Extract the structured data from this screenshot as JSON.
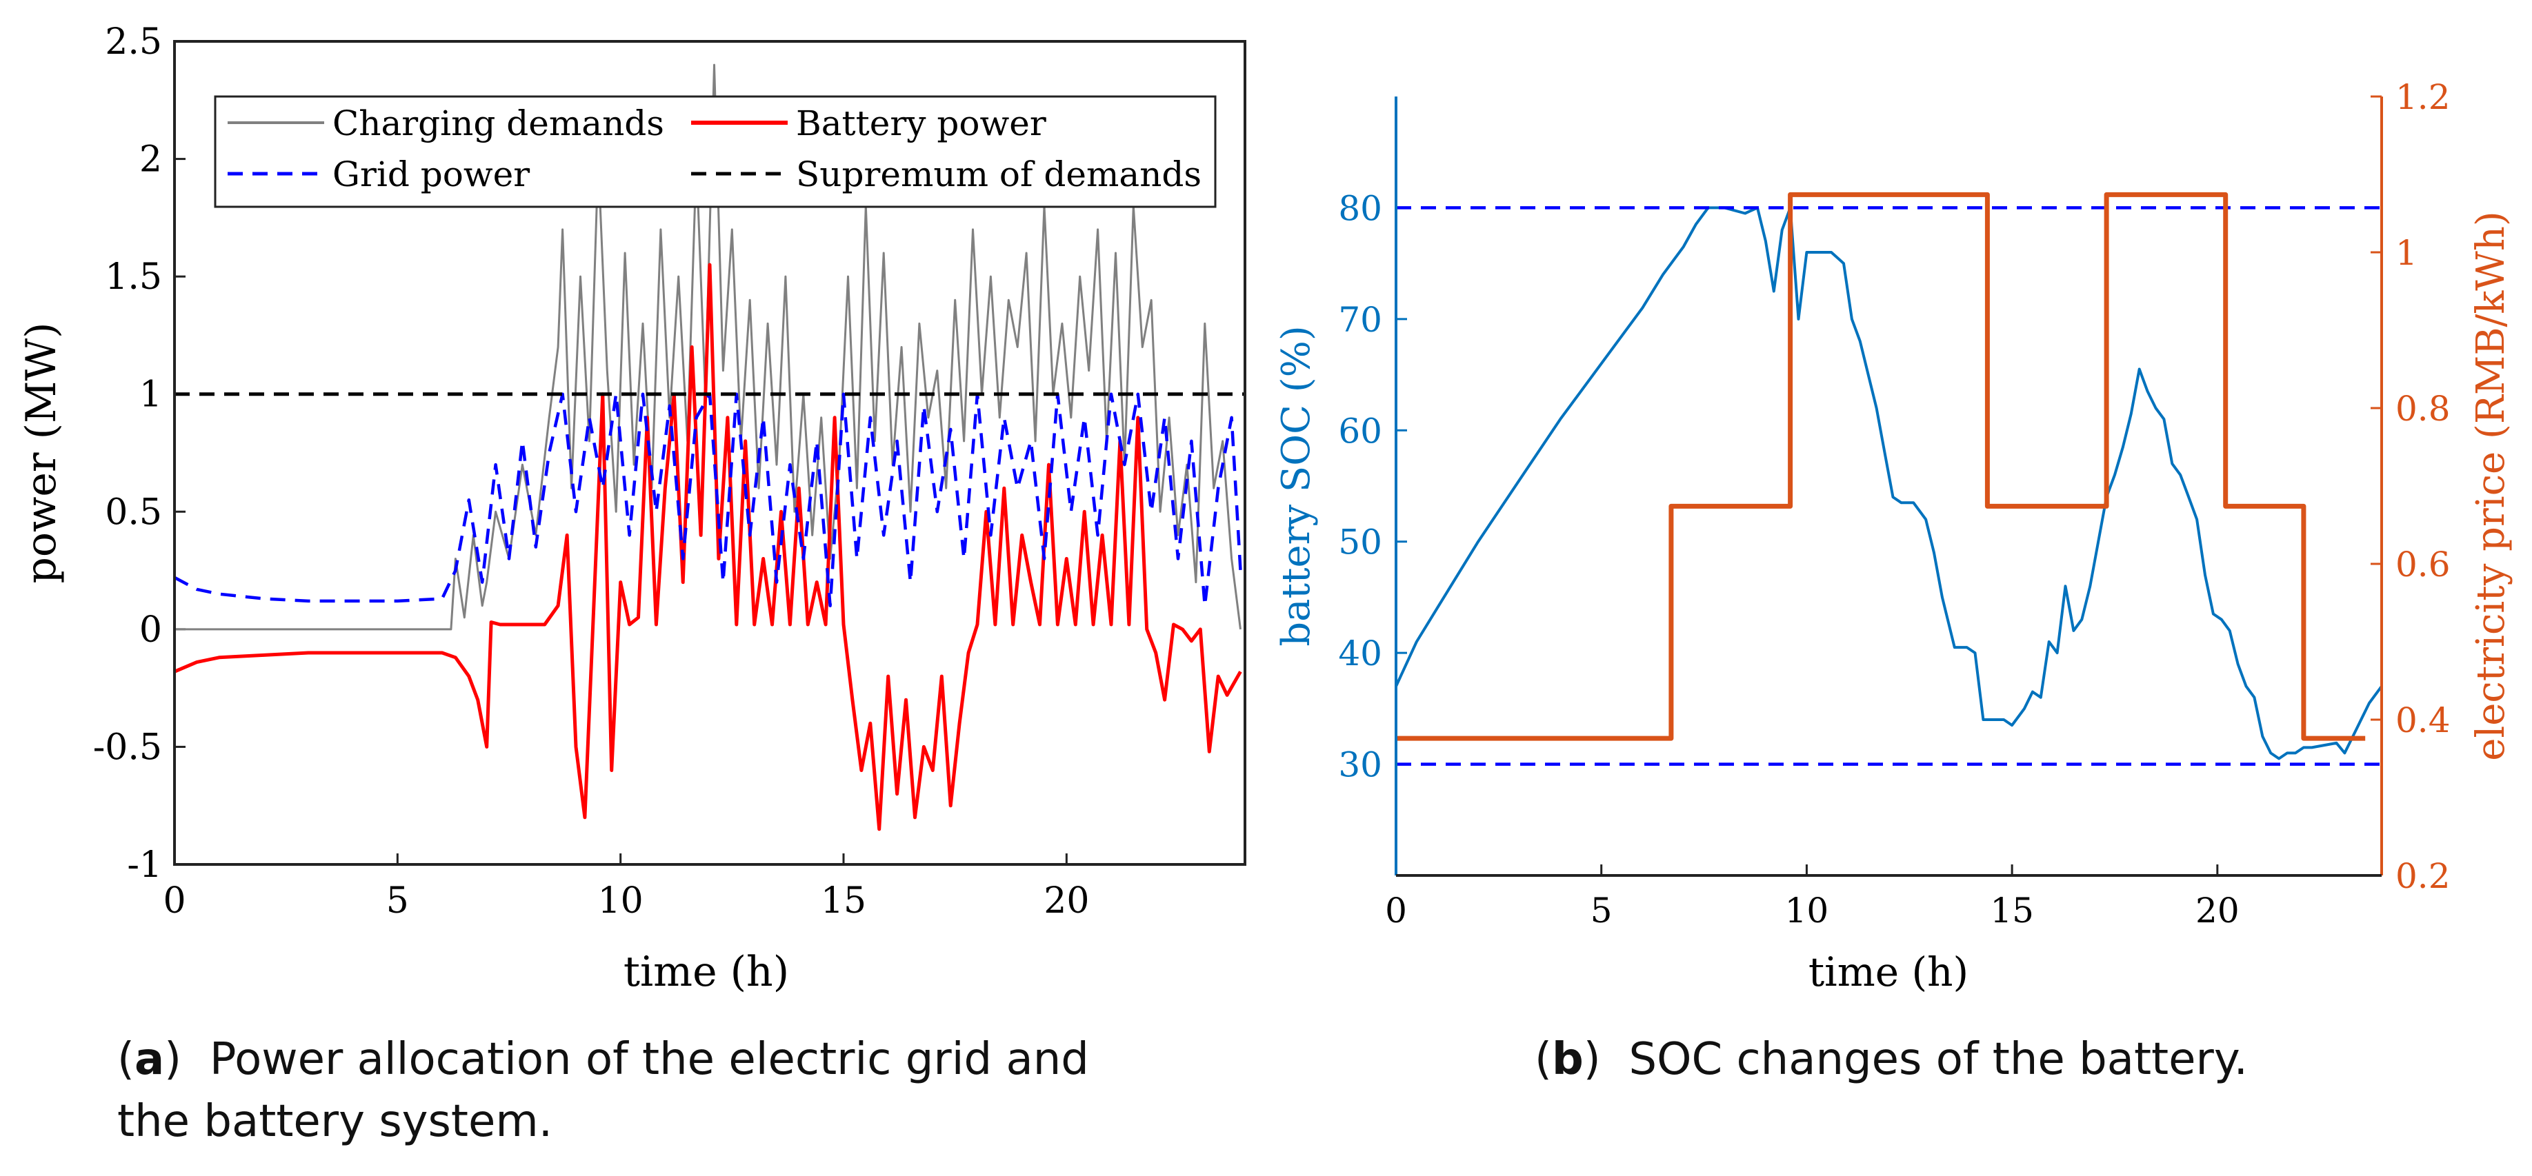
{
  "captions": {
    "a": {
      "letter": "a",
      "text": "Power allocation of the electric grid and",
      "text2": "the battery system."
    },
    "b": {
      "letter": "b",
      "text": "SOC changes of the battery."
    }
  },
  "chart_data": [
    {
      "type": "line",
      "id": "a",
      "title": "",
      "xlabel": "time (h)",
      "ylabel": "power (MW)",
      "xlim": [
        0,
        24
      ],
      "ylim": [
        -1,
        2.5
      ],
      "xticks": [
        0,
        5,
        10,
        15,
        20
      ],
      "yticks": [
        -1,
        -0.5,
        0,
        0.5,
        1,
        1.5,
        2,
        2.5
      ],
      "ytick_labels": [
        "-1",
        "-0.5",
        "0",
        "0.5",
        "1",
        "1.5",
        "2",
        "2.5"
      ],
      "legend": {
        "placement": "top-center",
        "entries": [
          "Charging demands",
          "Battery power",
          "Grid power",
          "Supremum of demands"
        ]
      },
      "series": [
        {
          "name": "Charging demands",
          "color": "#808080",
          "style": "solid",
          "x": [
            0,
            6.2,
            6.3,
            6.5,
            6.7,
            6.9,
            7.0,
            7.2,
            7.5,
            7.8,
            8.1,
            8.4,
            8.6,
            8.7,
            8.9,
            9.1,
            9.3,
            9.5,
            9.7,
            9.9,
            10.1,
            10.3,
            10.5,
            10.7,
            10.9,
            11.1,
            11.3,
            11.5,
            11.7,
            11.9,
            12.1,
            12.3,
            12.5,
            12.7,
            12.9,
            13.1,
            13.3,
            13.5,
            13.7,
            13.9,
            14.1,
            14.3,
            14.5,
            14.7,
            14.9,
            15.1,
            15.3,
            15.5,
            15.7,
            15.9,
            16.1,
            16.3,
            16.5,
            16.7,
            16.9,
            17.1,
            17.3,
            17.5,
            17.7,
            17.9,
            18.1,
            18.3,
            18.5,
            18.7,
            18.9,
            19.1,
            19.3,
            19.5,
            19.7,
            19.9,
            20.1,
            20.3,
            20.5,
            20.7,
            20.9,
            21.1,
            21.3,
            21.5,
            21.7,
            21.9,
            22.1,
            22.3,
            22.5,
            22.7,
            22.9,
            23.1,
            23.3,
            23.5,
            23.7,
            23.9
          ],
          "y": [
            0,
            0,
            0.3,
            0.05,
            0.4,
            0.1,
            0.2,
            0.5,
            0.3,
            0.7,
            0.4,
            0.9,
            1.2,
            1.7,
            0.6,
            1.5,
            0.8,
            2.0,
            1.1,
            0.5,
            1.6,
            0.7,
            1.3,
            0.6,
            1.7,
            0.9,
            1.5,
            0.8,
            2.0,
            1.0,
            2.4,
            1.1,
            1.7,
            0.8,
            1.4,
            0.6,
            1.3,
            0.7,
            1.5,
            0.5,
            1.0,
            0.4,
            0.9,
            0.3,
            0.7,
            1.5,
            0.6,
            1.8,
            0.8,
            1.6,
            0.7,
            1.2,
            0.5,
            1.3,
            0.9,
            1.1,
            0.6,
            1.4,
            0.8,
            1.7,
            1.0,
            1.5,
            0.9,
            1.4,
            1.2,
            1.6,
            0.8,
            1.8,
            1.0,
            1.3,
            0.9,
            1.5,
            1.1,
            1.7,
            0.8,
            1.6,
            0.7,
            1.8,
            1.2,
            1.4,
            0.5,
            0.9,
            0.4,
            0.7,
            0.2,
            1.3,
            0.6,
            0.8,
            0.3,
            0.0
          ]
        },
        {
          "name": "Battery power",
          "color": "#ff0000",
          "style": "solid",
          "x": [
            0,
            0.5,
            1,
            2,
            3,
            4,
            5,
            6,
            6.3,
            6.6,
            6.8,
            7.0,
            7.1,
            7.3,
            7.6,
            8.0,
            8.3,
            8.6,
            8.8,
            9.0,
            9.2,
            9.4,
            9.6,
            9.8,
            10.0,
            10.2,
            10.4,
            10.6,
            10.8,
            11.0,
            11.2,
            11.4,
            11.6,
            11.8,
            12.0,
            12.2,
            12.4,
            12.6,
            12.8,
            13.0,
            13.2,
            13.4,
            13.6,
            13.8,
            14.0,
            14.2,
            14.4,
            14.6,
            14.8,
            15.0,
            15.2,
            15.4,
            15.6,
            15.8,
            16.0,
            16.2,
            16.4,
            16.6,
            16.8,
            17.0,
            17.2,
            17.4,
            17.6,
            17.8,
            18.0,
            18.2,
            18.4,
            18.6,
            18.8,
            19.0,
            19.2,
            19.4,
            19.6,
            19.8,
            20.0,
            20.2,
            20.4,
            20.6,
            20.8,
            21.0,
            21.2,
            21.4,
            21.6,
            21.8,
            22.0,
            22.2,
            22.4,
            22.6,
            22.8,
            23.0,
            23.2,
            23.4,
            23.6,
            23.9
          ],
          "y": [
            -0.18,
            -0.14,
            -0.12,
            -0.11,
            -0.1,
            -0.1,
            -0.1,
            -0.1,
            -0.12,
            -0.2,
            -0.3,
            -0.5,
            0.03,
            0.02,
            0.02,
            0.02,
            0.02,
            0.1,
            0.4,
            -0.5,
            -0.8,
            0.1,
            1.0,
            -0.6,
            0.2,
            0.02,
            0.05,
            0.9,
            0.02,
            0.6,
            1.0,
            0.2,
            1.2,
            0.4,
            1.55,
            0.3,
            0.9,
            0.02,
            0.8,
            0.02,
            0.3,
            0.02,
            0.5,
            0.02,
            0.6,
            0.02,
            0.2,
            0.02,
            0.9,
            0.02,
            -0.3,
            -0.6,
            -0.4,
            -0.85,
            -0.2,
            -0.7,
            -0.3,
            -0.8,
            -0.5,
            -0.6,
            -0.2,
            -0.75,
            -0.4,
            -0.1,
            0.02,
            0.5,
            0.02,
            0.6,
            0.02,
            0.4,
            0.2,
            0.02,
            0.7,
            0.02,
            0.3,
            0.02,
            0.5,
            0.02,
            0.4,
            0.02,
            0.8,
            0.02,
            0.9,
            0.0,
            -0.1,
            -0.3,
            0.02,
            0.0,
            -0.05,
            0.0,
            -0.52,
            -0.2,
            -0.28,
            -0.18
          ]
        },
        {
          "name": "Grid power",
          "color": "#0000ff",
          "style": "dashed",
          "x": [
            0,
            0.5,
            1,
            2,
            3,
            4,
            5,
            6,
            6.3,
            6.6,
            6.9,
            7.2,
            7.5,
            7.8,
            8.1,
            8.4,
            8.7,
            9.0,
            9.3,
            9.6,
            9.9,
            10.2,
            10.5,
            10.8,
            11.1,
            11.4,
            11.7,
            12.0,
            12.3,
            12.6,
            12.9,
            13.2,
            13.5,
            13.8,
            14.1,
            14.4,
            14.7,
            15.0,
            15.3,
            15.6,
            15.9,
            16.2,
            16.5,
            16.8,
            17.1,
            17.4,
            17.7,
            18.0,
            18.3,
            18.6,
            18.9,
            19.2,
            19.5,
            19.8,
            20.1,
            20.4,
            20.7,
            21.0,
            21.3,
            21.6,
            21.9,
            22.2,
            22.5,
            22.8,
            23.1,
            23.4,
            23.7,
            23.9
          ],
          "y": [
            0.22,
            0.17,
            0.15,
            0.13,
            0.12,
            0.12,
            0.12,
            0.13,
            0.25,
            0.55,
            0.2,
            0.7,
            0.3,
            0.8,
            0.35,
            0.75,
            1.0,
            0.5,
            0.9,
            0.6,
            1.0,
            0.4,
            1.0,
            0.5,
            0.95,
            0.3,
            0.9,
            1.0,
            0.2,
            1.0,
            0.4,
            0.9,
            0.2,
            0.7,
            0.3,
            0.8,
            0.1,
            1.0,
            0.3,
            0.9,
            0.4,
            0.8,
            0.2,
            0.95,
            0.5,
            0.85,
            0.3,
            1.0,
            0.4,
            0.9,
            0.6,
            0.8,
            0.3,
            1.0,
            0.5,
            0.9,
            0.4,
            1.0,
            0.7,
            1.0,
            0.5,
            0.9,
            0.3,
            0.8,
            0.1,
            0.6,
            0.9,
            0.25
          ]
        },
        {
          "name": "Supremum of demands",
          "color": "#000000",
          "style": "dashed",
          "x": [
            0,
            24
          ],
          "y": [
            1.0,
            1.0
          ]
        }
      ]
    },
    {
      "type": "line",
      "id": "b",
      "title": "",
      "xlabel": "time (h)",
      "ylabel": "battery SOC (%)",
      "y2label": "electricity price (RMB/kWh)",
      "xlim": [
        0,
        24
      ],
      "ylim": [
        20,
        90
      ],
      "y2lim": [
        0.2,
        1.2
      ],
      "xticks": [
        0,
        5,
        10,
        15,
        20
      ],
      "yticks": [
        30,
        40,
        50,
        60,
        70,
        80
      ],
      "y2ticks": [
        0.2,
        0.4,
        0.6,
        0.8,
        1.0,
        1.2
      ],
      "y2tick_labels": [
        "0.2",
        "0.4",
        "0.6",
        "0.8",
        "1",
        "1.2"
      ],
      "series": [
        {
          "name": "battery SOC",
          "axis": "left",
          "color": "#0072bd",
          "style": "solid",
          "x": [
            0,
            0.5,
            1,
            2,
            3,
            4,
            5,
            6,
            6.5,
            7,
            7.3,
            7.6,
            8,
            8.5,
            8.8,
            9.0,
            9.2,
            9.4,
            9.6,
            9.8,
            10.0,
            10.2,
            10.6,
            10.9,
            11.1,
            11.3,
            11.5,
            11.7,
            11.9,
            12.1,
            12.3,
            12.6,
            12.9,
            13.1,
            13.3,
            13.6,
            13.9,
            14.1,
            14.3,
            14.5,
            14.8,
            15.0,
            15.3,
            15.5,
            15.7,
            15.9,
            16.1,
            16.3,
            16.5,
            16.7,
            16.9,
            17.1,
            17.3,
            17.5,
            17.7,
            17.9,
            18.1,
            18.3,
            18.5,
            18.7,
            18.9,
            19.1,
            19.3,
            19.5,
            19.7,
            19.9,
            20.1,
            20.3,
            20.5,
            20.7,
            20.9,
            21.1,
            21.3,
            21.5,
            21.7,
            21.9,
            22.1,
            22.3,
            22.6,
            22.9,
            23.1,
            23.3,
            23.5,
            23.7,
            24
          ],
          "y": [
            37,
            41,
            44,
            50,
            55.5,
            61,
            66,
            71,
            74,
            76.5,
            78.5,
            80,
            80,
            79.5,
            80,
            77,
            72.5,
            78,
            80,
            70,
            76,
            76,
            76,
            75,
            70,
            68,
            65,
            62,
            58,
            54,
            53.5,
            53.5,
            52,
            49,
            45,
            40.5,
            40.5,
            40,
            34,
            34,
            34,
            33.5,
            35,
            36.5,
            36,
            41,
            40,
            46,
            42,
            43,
            46,
            50,
            54,
            56,
            58.5,
            61.5,
            65.5,
            63.5,
            62,
            61,
            57,
            56,
            54,
            52,
            47,
            43.5,
            43,
            42,
            39,
            37,
            36,
            32.5,
            31,
            30.5,
            31,
            31,
            31.5,
            31.5,
            31.7,
            31.9,
            31,
            32.5,
            34,
            35.5,
            37
          ]
        },
        {
          "name": "SOC upper bound",
          "axis": "left",
          "color": "#0000ff",
          "style": "dashed",
          "x": [
            0,
            24
          ],
          "y": [
            80,
            80
          ]
        },
        {
          "name": "SOC lower bound",
          "axis": "left",
          "color": "#0000ff",
          "style": "dashed",
          "x": [
            0,
            24
          ],
          "y": [
            30,
            30
          ]
        },
        {
          "name": "electricity price",
          "axis": "right",
          "color": "#d95319",
          "style": "solid",
          "x": [
            0,
            6.7,
            6.7,
            9.6,
            9.6,
            14.4,
            14.4,
            17.3,
            17.3,
            20.2,
            20.2,
            22.1,
            22.1,
            23.6
          ],
          "y": [
            0.376,
            0.376,
            0.674,
            0.674,
            1.074,
            1.074,
            0.674,
            0.674,
            1.074,
            1.074,
            0.674,
            0.674,
            0.376,
            0.376
          ]
        }
      ]
    }
  ]
}
